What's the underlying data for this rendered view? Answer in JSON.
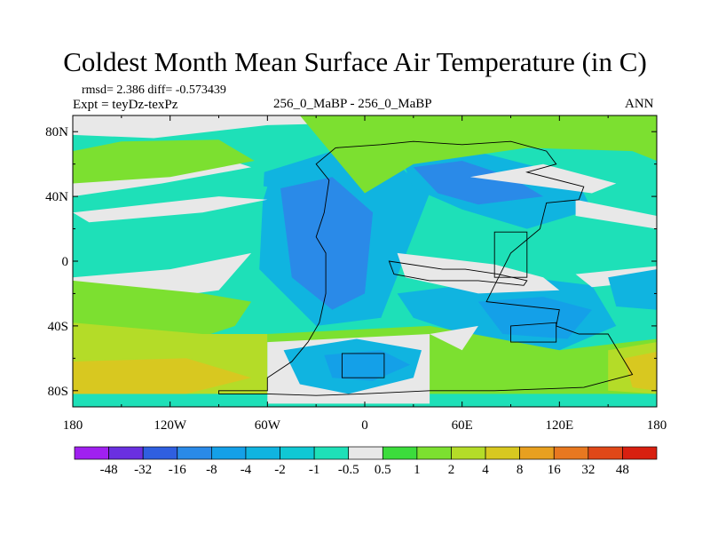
{
  "chart_data": {
    "type": "heatmap",
    "title": "Coldest Month Mean Surface Air Temperature (in C)",
    "stats_line": "rmsd= 2.386 diff= -0.573439",
    "experiment": "Expt = teyDz-texPz",
    "subtitle": "256_0_MaBP - 256_0_MaBP",
    "season": "ANN",
    "x_ticks": [
      "180",
      "120W",
      "60W",
      "0",
      "60E",
      "120E",
      "180"
    ],
    "x_tick_values": [
      -180,
      -120,
      -60,
      0,
      60,
      120,
      180
    ],
    "y_ticks": [
      "80N",
      "40N",
      "0",
      "40S",
      "80S"
    ],
    "y_tick_values": [
      80,
      40,
      0,
      -40,
      -80
    ],
    "xlim": [
      -180,
      180
    ],
    "ylim": [
      -90,
      90
    ],
    "colorbar": {
      "levels": [
        "-48",
        "-32",
        "-16",
        "-8",
        "-4",
        "-2",
        "-1",
        "-0.5",
        "0.5",
        "1",
        "2",
        "4",
        "8",
        "16",
        "32",
        "48"
      ],
      "colors": [
        "#a020f0",
        "#6a30e0",
        "#2f5fe0",
        "#2a8ae8",
        "#14a0e8",
        "#10b4e0",
        "#10c8d4",
        "#1ee0b8",
        "#e8e8e8",
        "#3cdc3c",
        "#7ce030",
        "#b4dc28",
        "#d8c820",
        "#e8a020",
        "#e87820",
        "#e04818",
        "#d82010"
      ]
    },
    "regions": [
      {
        "level": 7,
        "coords": [
          [
            -180,
            -90
          ],
          [
            180,
            -90
          ],
          [
            180,
            90
          ],
          [
            -180,
            90
          ]
        ]
      },
      {
        "level": 5,
        "coords": [
          [
            -62,
            55
          ],
          [
            -20,
            68
          ],
          [
            20,
            60
          ],
          [
            40,
            42
          ],
          [
            10,
            -35
          ],
          [
            -30,
            -40
          ],
          [
            -65,
            -5
          ]
        ]
      },
      {
        "level": 3,
        "coords": [
          [
            -52,
            45
          ],
          [
            -20,
            52
          ],
          [
            5,
            30
          ],
          [
            0,
            -20
          ],
          [
            -20,
            -30
          ],
          [
            -45,
            -10
          ]
        ]
      },
      {
        "level": 5,
        "coords": [
          [
            20,
            70
          ],
          [
            50,
            72
          ],
          [
            80,
            65
          ],
          [
            130,
            52
          ],
          [
            140,
            32
          ],
          [
            100,
            20
          ],
          [
            60,
            32
          ],
          [
            30,
            45
          ]
        ]
      },
      {
        "level": 3,
        "coords": [
          [
            30,
            58
          ],
          [
            60,
            62
          ],
          [
            90,
            52
          ],
          [
            110,
            40
          ],
          [
            70,
            35
          ],
          [
            45,
            42
          ]
        ]
      },
      {
        "level": 5,
        "coords": [
          [
            20,
            -20
          ],
          [
            100,
            -10
          ],
          [
            140,
            -15
          ],
          [
            155,
            -40
          ],
          [
            120,
            -55
          ],
          [
            60,
            -45
          ],
          [
            30,
            -35
          ]
        ]
      },
      {
        "level": 4,
        "coords": [
          [
            70,
            -25
          ],
          [
            110,
            -22
          ],
          [
            140,
            -30
          ],
          [
            125,
            -48
          ],
          [
            85,
            -45
          ]
        ]
      },
      {
        "level": 5,
        "coords": [
          [
            -45,
            -55
          ],
          [
            -10,
            -48
          ],
          [
            40,
            -55
          ],
          [
            45,
            -70
          ],
          [
            10,
            -80
          ],
          [
            -40,
            -78
          ]
        ]
      },
      {
        "level": 4,
        "coords": [
          [
            -25,
            -58
          ],
          [
            10,
            -55
          ],
          [
            30,
            -65
          ],
          [
            5,
            -75
          ],
          [
            -20,
            -72
          ]
        ]
      },
      {
        "level": 8,
        "coords": [
          [
            -180,
            90
          ],
          [
            180,
            90
          ],
          [
            180,
            74
          ],
          [
            90,
            80
          ],
          [
            20,
            86
          ],
          [
            -60,
            84
          ],
          [
            -130,
            76
          ],
          [
            -180,
            78
          ]
        ]
      },
      {
        "level": 7,
        "coords": [
          [
            -125,
            55
          ],
          [
            -60,
            46
          ],
          [
            -65,
            30
          ],
          [
            -120,
            35
          ],
          [
            -170,
            36
          ]
        ]
      },
      {
        "level": 8,
        "coords": [
          [
            -180,
            40
          ],
          [
            -125,
            48
          ],
          [
            -70,
            58
          ],
          [
            -100,
            68
          ],
          [
            -160,
            62
          ],
          [
            -180,
            56
          ]
        ]
      },
      {
        "level": 10,
        "coords": [
          [
            -180,
            48
          ],
          [
            -120,
            52
          ],
          [
            -68,
            62
          ],
          [
            -90,
            75
          ],
          [
            -150,
            74
          ],
          [
            -180,
            68
          ]
        ]
      },
      {
        "level": 8,
        "coords": [
          [
            -180,
            30
          ],
          [
            -90,
            40
          ],
          [
            -60,
            38
          ],
          [
            -100,
            30
          ],
          [
            -170,
            24
          ]
        ]
      },
      {
        "level": 10,
        "coords": [
          [
            0,
            42
          ],
          [
            30,
            60
          ],
          [
            100,
            70
          ],
          [
            165,
            68
          ],
          [
            180,
            62
          ],
          [
            180,
            90
          ],
          [
            -40,
            90
          ]
        ]
      },
      {
        "level": 8,
        "coords": [
          [
            65,
            52
          ],
          [
            140,
            42
          ],
          [
            155,
            48
          ],
          [
            110,
            60
          ]
        ]
      },
      {
        "level": 8,
        "coords": [
          [
            130,
            38
          ],
          [
            180,
            28
          ],
          [
            180,
            20
          ],
          [
            130,
            28
          ]
        ]
      },
      {
        "level": 8,
        "coords": [
          [
            -180,
            -10
          ],
          [
            -120,
            -5
          ],
          [
            -70,
            5
          ],
          [
            -90,
            -18
          ],
          [
            -150,
            -26
          ],
          [
            -180,
            -22
          ]
        ]
      },
      {
        "level": 8,
        "coords": [
          [
            20,
            5
          ],
          [
            80,
            -2
          ],
          [
            110,
            -10
          ],
          [
            120,
            -18
          ],
          [
            70,
            -20
          ],
          [
            25,
            -10
          ]
        ]
      },
      {
        "level": 8,
        "coords": [
          [
            130,
            -8
          ],
          [
            180,
            -3
          ],
          [
            180,
            -12
          ],
          [
            140,
            -16
          ]
        ]
      },
      {
        "level": 10,
        "coords": [
          [
            -180,
            -12
          ],
          [
            -100,
            -20
          ],
          [
            -70,
            -25
          ],
          [
            -80,
            -40
          ],
          [
            -110,
            -50
          ],
          [
            -180,
            -40
          ]
        ]
      },
      {
        "level": 11,
        "coords": [
          [
            -180,
            -38
          ],
          [
            -100,
            -45
          ],
          [
            -60,
            -45
          ],
          [
            -60,
            -82
          ],
          [
            -180,
            -82
          ]
        ]
      },
      {
        "level": 12,
        "coords": [
          [
            -180,
            -62
          ],
          [
            -110,
            -60
          ],
          [
            -70,
            -72
          ],
          [
            -110,
            -82
          ],
          [
            -180,
            -82
          ]
        ]
      },
      {
        "level": 10,
        "coords": [
          [
            -60,
            -45
          ],
          [
            40,
            -40
          ],
          [
            120,
            -55
          ],
          [
            180,
            -48
          ],
          [
            180,
            -82
          ],
          [
            -60,
            -82
          ]
        ]
      },
      {
        "level": 8,
        "coords": [
          [
            -60,
            -50
          ],
          [
            40,
            -45
          ],
          [
            40,
            -88
          ],
          [
            -60,
            -88
          ]
        ]
      },
      {
        "level": 5,
        "coords": [
          [
            -50,
            -55
          ],
          [
            -5,
            -48
          ],
          [
            35,
            -55
          ],
          [
            30,
            -72
          ],
          [
            -10,
            -82
          ],
          [
            -40,
            -76
          ]
        ]
      },
      {
        "level": 4,
        "coords": [
          [
            -25,
            -58
          ],
          [
            10,
            -55
          ],
          [
            28,
            -64
          ],
          [
            5,
            -74
          ],
          [
            -20,
            -72
          ]
        ]
      },
      {
        "level": 8,
        "coords": [
          [
            40,
            -45
          ],
          [
            70,
            -40
          ],
          [
            60,
            -55
          ]
        ]
      },
      {
        "level": 11,
        "coords": [
          [
            150,
            -55
          ],
          [
            180,
            -50
          ],
          [
            180,
            -82
          ],
          [
            150,
            -80
          ]
        ]
      },
      {
        "level": 12,
        "coords": [
          [
            160,
            -60
          ],
          [
            180,
            -56
          ],
          [
            180,
            -80
          ],
          [
            165,
            -78
          ]
        ]
      },
      {
        "level": 5,
        "coords": [
          [
            150,
            -10
          ],
          [
            180,
            -5
          ],
          [
            180,
            -30
          ],
          [
            155,
            -28
          ]
        ]
      }
    ],
    "continent_outline": [
      [
        -18,
        70
      ],
      [
        10,
        72
      ],
      [
        30,
        74
      ],
      [
        60,
        72
      ],
      [
        90,
        74
      ],
      [
        112,
        68
      ],
      [
        118,
        60
      ],
      [
        100,
        55
      ],
      [
        135,
        46
      ],
      [
        132,
        38
      ],
      [
        112,
        36
      ],
      [
        108,
        20
      ],
      [
        90,
        5
      ],
      [
        80,
        -15
      ],
      [
        75,
        -25
      ],
      [
        120,
        -30
      ],
      [
        118,
        -40
      ],
      [
        132,
        -45
      ],
      [
        150,
        -45
      ],
      [
        165,
        -70
      ],
      [
        135,
        -78
      ],
      [
        80,
        -80
      ],
      [
        40,
        -80
      ],
      [
        -2,
        -82
      ],
      [
        -30,
        -83
      ],
      [
        -60,
        -82
      ],
      [
        -90,
        -82
      ],
      [
        -90,
        -80
      ],
      [
        -60,
        -80
      ],
      [
        -60,
        -72
      ],
      [
        -45,
        -62
      ],
      [
        -35,
        -50
      ],
      [
        -28,
        -38
      ],
      [
        -24,
        -20
      ],
      [
        -24,
        5
      ],
      [
        -30,
        15
      ],
      [
        -25,
        30
      ],
      [
        -22,
        50
      ],
      [
        -30,
        60
      ],
      [
        -18,
        70
      ]
    ],
    "basins": [
      [
        [
          -14,
          -57
        ],
        [
          12,
          -57
        ],
        [
          12,
          -72
        ],
        [
          -14,
          -72
        ]
      ],
      [
        [
          15,
          0
        ],
        [
          48,
          -5
        ],
        [
          62,
          -5
        ],
        [
          82,
          -8
        ],
        [
          100,
          -12
        ],
        [
          98,
          -15
        ],
        [
          70,
          -12
        ],
        [
          40,
          -12
        ],
        [
          18,
          -8
        ]
      ],
      [
        [
          80,
          18
        ],
        [
          100,
          18
        ],
        [
          100,
          -10
        ],
        [
          80,
          -10
        ]
      ],
      [
        [
          90,
          -40
        ],
        [
          118,
          -38
        ],
        [
          118,
          -50
        ],
        [
          90,
          -50
        ]
      ]
    ]
  }
}
